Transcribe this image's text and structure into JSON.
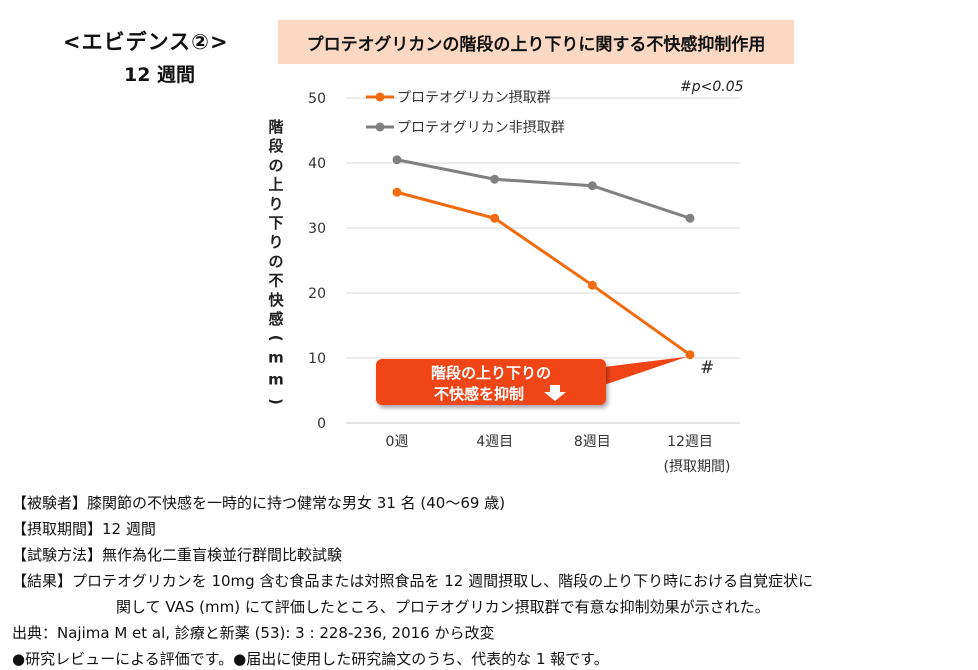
{
  "header": {
    "evidence_label": "<エビデンス②>",
    "duration": "12 週間",
    "title": "プロテオグリカンの階段の上り下りに関する不快感抑制作用"
  },
  "colors": {
    "intake": "#f26b0f",
    "non_intake": "#808080",
    "title_bg": "#fbd8c3",
    "callout": "#f04416"
  },
  "chart_data": {
    "type": "line",
    "categories": [
      "0週",
      "4週目",
      "8週目",
      "12週目"
    ],
    "x_sublabel": "(摂取期間)",
    "ylabel": "階段の上り下りの不快感(mm)",
    "ylim": [
      0,
      50
    ],
    "yticks": [
      0,
      10,
      20,
      30,
      40,
      50
    ],
    "grid": true,
    "legend_position": "top-left",
    "series": [
      {
        "name": "プロテオグリカン摂取群",
        "color": "#f26b0f",
        "values": [
          35.5,
          31.5,
          21.2,
          10.5
        ]
      },
      {
        "name": "プロテオグリカン非摂取群",
        "color": "#808080",
        "values": [
          40.5,
          37.5,
          36.5,
          31.5
        ]
      }
    ],
    "significance_note": "#p<0.05",
    "significance_mark": "#",
    "callout_lines": [
      "階段の上り下りの",
      "不快感を抑制"
    ]
  },
  "info": {
    "subjects": "【被験者】膝関節の不快感を一時的に持つ健常な男女 31 名 (40〜69 歳)",
    "period": "【摂取期間】12 週間",
    "method": "【試験方法】無作為化二重盲検並行群間比較試験",
    "result_line1": "【結果】プロテオグリカンを 10mg 含む食品または対照食品を 12 週間摂取し、階段の上り下り時における自覚症状に",
    "result_line2": "関して VAS (mm) にて評価したところ、プロテオグリカン摂取群で有意な抑制効果が示された。",
    "source": "出典：Najima M et al, 診療と新薬 (53): 3 : 228-236, 2016 から改変",
    "note": "●研究レビューによる評価です。●届出に使用した研究論文のうち、代表的な 1 報です。"
  }
}
